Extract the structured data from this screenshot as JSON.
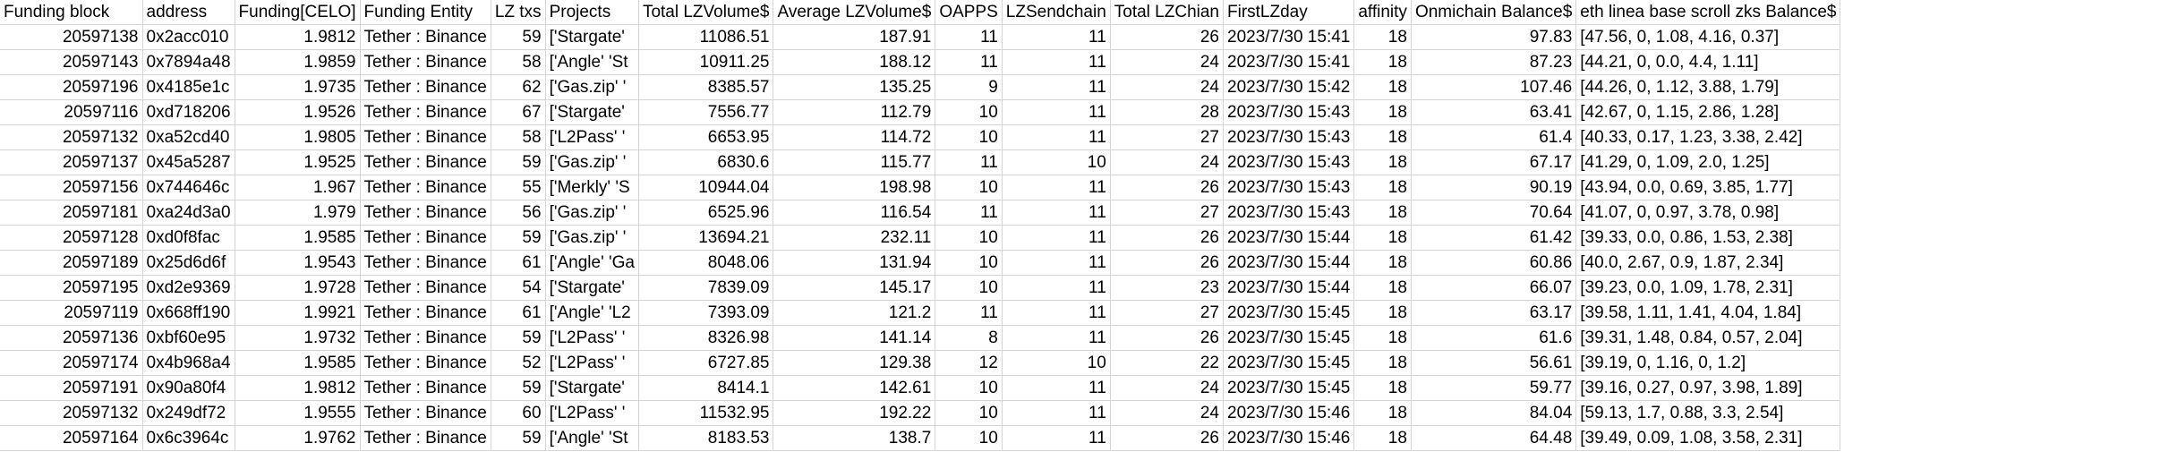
{
  "headers": [
    "Funding block",
    "address",
    "Funding[CELO]",
    "Funding Entity",
    "LZ txs",
    "Projects",
    "Total LZVolume$",
    "Average LZVolume$",
    "OAPPS",
    "LZSendchain",
    "Total LZChian",
    "FirstLZday",
    "affinity",
    "Onmichain Balance$",
    "eth linea base scroll zks Balance$"
  ],
  "rows": [
    [
      "20597138",
      "0x2acc010",
      "1.9812",
      "Tether : Binance",
      "59",
      "['Stargate'",
      "11086.51",
      "187.91",
      "11",
      "11",
      "26",
      "2023/7/30 15:41",
      "18",
      "97.83",
      "[47.56, 0, 1.08, 4.16, 0.37]"
    ],
    [
      "20597143",
      "0x7894a48",
      "1.9859",
      "Tether : Binance",
      "58",
      "['Angle' 'St",
      "10911.25",
      "188.12",
      "11",
      "11",
      "24",
      "2023/7/30 15:41",
      "18",
      "87.23",
      "[44.21, 0, 0.0, 4.4, 1.11]"
    ],
    [
      "20597196",
      "0x4185e1c",
      "1.9735",
      "Tether : Binance",
      "62",
      "['Gas.zip' '",
      "8385.57",
      "135.25",
      "9",
      "11",
      "24",
      "2023/7/30 15:42",
      "18",
      "107.46",
      "[44.26, 0, 1.12, 3.88, 1.79]"
    ],
    [
      "20597116",
      "0xd718206",
      "1.9526",
      "Tether : Binance",
      "67",
      "['Stargate'",
      "7556.77",
      "112.79",
      "10",
      "11",
      "28",
      "2023/7/30 15:43",
      "18",
      "63.41",
      "[42.67, 0, 1.15, 2.86, 1.28]"
    ],
    [
      "20597132",
      "0xa52cd40",
      "1.9805",
      "Tether : Binance",
      "58",
      "['L2Pass' '",
      "6653.95",
      "114.72",
      "10",
      "11",
      "27",
      "2023/7/30 15:43",
      "18",
      "61.4",
      "[40.33, 0.17, 1.23, 3.38, 2.42]"
    ],
    [
      "20597137",
      "0x45a5287",
      "1.9525",
      "Tether : Binance",
      "59",
      "['Gas.zip' '",
      "6830.6",
      "115.77",
      "11",
      "10",
      "24",
      "2023/7/30 15:43",
      "18",
      "67.17",
      "[41.29, 0, 1.09, 2.0, 1.25]"
    ],
    [
      "20597156",
      "0x744646c",
      "1.967",
      "Tether : Binance",
      "55",
      "['Merkly' 'S",
      "10944.04",
      "198.98",
      "10",
      "11",
      "26",
      "2023/7/30 15:43",
      "18",
      "90.19",
      "[43.94, 0.0, 0.69, 3.85, 1.77]"
    ],
    [
      "20597181",
      "0xa24d3a0",
      "1.979",
      "Tether : Binance",
      "56",
      "['Gas.zip' '",
      "6525.96",
      "116.54",
      "11",
      "11",
      "27",
      "2023/7/30 15:43",
      "18",
      "70.64",
      "[41.07, 0, 0.97, 3.78, 0.98]"
    ],
    [
      "20597128",
      "0xd0f8fac",
      "1.9585",
      "Tether : Binance",
      "59",
      "['Gas.zip' '",
      "13694.21",
      "232.11",
      "10",
      "11",
      "26",
      "2023/7/30 15:44",
      "18",
      "61.42",
      "[39.33, 0.0, 0.86, 1.53, 2.38]"
    ],
    [
      "20597189",
      "0x25d6d6f",
      "1.9543",
      "Tether : Binance",
      "61",
      "['Angle' 'Ga",
      "8048.06",
      "131.94",
      "10",
      "11",
      "26",
      "2023/7/30 15:44",
      "18",
      "60.86",
      "[40.0, 2.67, 0.9, 1.87, 2.34]"
    ],
    [
      "20597195",
      "0xd2e9369",
      "1.9728",
      "Tether : Binance",
      "54",
      "['Stargate'",
      "7839.09",
      "145.17",
      "10",
      "11",
      "23",
      "2023/7/30 15:44",
      "18",
      "66.07",
      "[39.23, 0.0, 1.09, 1.78, 2.31]"
    ],
    [
      "20597119",
      "0x668ff190",
      "1.9921",
      "Tether : Binance",
      "61",
      "['Angle' 'L2",
      "7393.09",
      "121.2",
      "11",
      "11",
      "27",
      "2023/7/30 15:45",
      "18",
      "63.17",
      "[39.58, 1.11, 1.41, 4.04, 1.84]"
    ],
    [
      "20597136",
      "0xbf60e95",
      "1.9732",
      "Tether : Binance",
      "59",
      "['L2Pass' '",
      "8326.98",
      "141.14",
      "8",
      "11",
      "26",
      "2023/7/30 15:45",
      "18",
      "61.6",
      "[39.31, 1.48, 0.84, 0.57, 2.04]"
    ],
    [
      "20597174",
      "0x4b968a4",
      "1.9585",
      "Tether : Binance",
      "52",
      "['L2Pass' '",
      "6727.85",
      "129.38",
      "12",
      "10",
      "22",
      "2023/7/30 15:45",
      "18",
      "56.61",
      "[39.19, 0, 1.16, 0, 1.2]"
    ],
    [
      "20597191",
      "0x90a80f4",
      "1.9812",
      "Tether : Binance",
      "59",
      "['Stargate'",
      "8414.1",
      "142.61",
      "10",
      "11",
      "24",
      "2023/7/30 15:45",
      "18",
      "59.77",
      "[39.16, 0.27, 0.97, 3.98, 1.89]"
    ],
    [
      "20597132",
      "0x249df72",
      "1.9555",
      "Tether : Binance",
      "60",
      "['L2Pass' '",
      "11532.95",
      "192.22",
      "10",
      "11",
      "24",
      "2023/7/30 15:46",
      "18",
      "84.04",
      "[59.13, 1.7, 0.88, 3.3, 2.54]"
    ],
    [
      "20597164",
      "0x6c3964c",
      "1.9762",
      "Tether : Binance",
      "59",
      "['Angle' 'St",
      "8183.53",
      "138.7",
      "10",
      "11",
      "26",
      "2023/7/30 15:46",
      "18",
      "64.48",
      "[39.49, 0.09, 1.08, 3.58, 2.31]"
    ]
  ]
}
